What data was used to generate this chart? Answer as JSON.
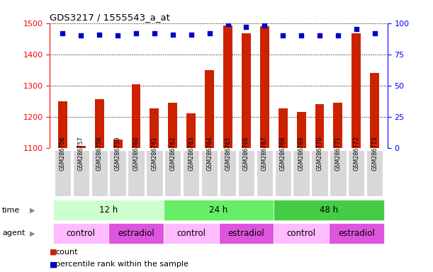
{
  "title": "GDS3217 / 1555543_a_at",
  "samples": [
    "GSM286756",
    "GSM286757",
    "GSM286758",
    "GSM286759",
    "GSM286760",
    "GSM286761",
    "GSM286762",
    "GSM286763",
    "GSM286764",
    "GSM286765",
    "GSM286766",
    "GSM286767",
    "GSM286768",
    "GSM286769",
    "GSM286770",
    "GSM286771",
    "GSM286772",
    "GSM286773"
  ],
  "counts": [
    1250,
    1107,
    1258,
    1128,
    1305,
    1228,
    1245,
    1212,
    1350,
    1492,
    1468,
    1490,
    1228,
    1215,
    1240,
    1245,
    1468,
    1340
  ],
  "percentile_ranks": [
    92,
    90,
    91,
    90,
    92,
    92,
    91,
    91,
    92,
    99,
    97,
    98,
    90,
    90,
    90,
    90,
    95,
    92
  ],
  "ylim_left": [
    1100,
    1500
  ],
  "ylim_right": [
    0,
    100
  ],
  "yticks_left": [
    1100,
    1200,
    1300,
    1400,
    1500
  ],
  "yticks_right": [
    0,
    25,
    50,
    75,
    100
  ],
  "bar_color": "#cc2200",
  "dot_color": "#0000cc",
  "bar_width": 0.5,
  "xtick_bg": "#d8d8d8",
  "groups": {
    "time": [
      {
        "label": "12 h",
        "start": 0,
        "end": 6,
        "color": "#ccffcc"
      },
      {
        "label": "24 h",
        "start": 6,
        "end": 12,
        "color": "#66ee66"
      },
      {
        "label": "48 h",
        "start": 12,
        "end": 18,
        "color": "#44cc44"
      }
    ],
    "agent": [
      {
        "label": "control",
        "start": 0,
        "end": 3,
        "color": "#ffbbff"
      },
      {
        "label": "estradiol",
        "start": 3,
        "end": 6,
        "color": "#dd55dd"
      },
      {
        "label": "control",
        "start": 6,
        "end": 9,
        "color": "#ffbbff"
      },
      {
        "label": "estradiol",
        "start": 9,
        "end": 12,
        "color": "#dd55dd"
      },
      {
        "label": "control",
        "start": 12,
        "end": 15,
        "color": "#ffbbff"
      },
      {
        "label": "estradiol",
        "start": 15,
        "end": 18,
        "color": "#dd55dd"
      }
    ]
  },
  "legend": [
    {
      "label": "count",
      "color": "#cc2200"
    },
    {
      "label": "percentile rank within the sample",
      "color": "#0000cc"
    }
  ],
  "background_color": "#ffffff",
  "label_time": "time",
  "label_agent": "agent"
}
